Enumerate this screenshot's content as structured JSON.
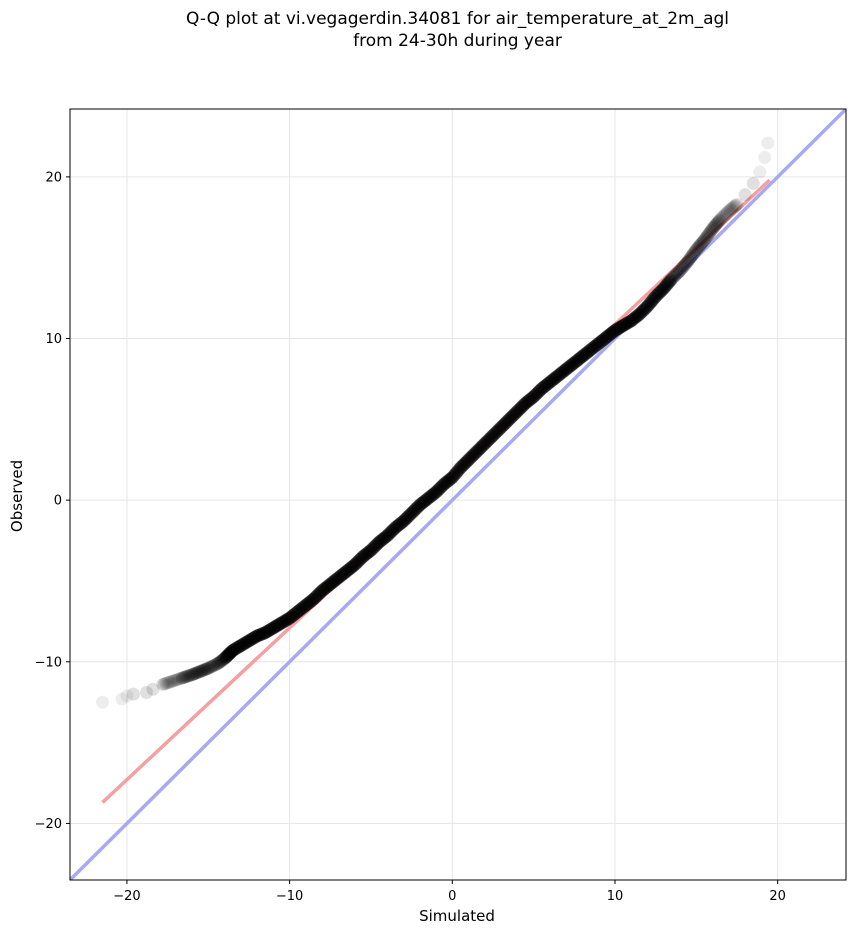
{
  "chart_data": {
    "type": "scatter",
    "title_line1": "Q-Q plot at vi.vegagerdin.34081 for air_temperature_at_2m_agl",
    "title_line2": "from 24-30h during year",
    "xlabel": "Simulated",
    "ylabel": "Observed",
    "xlim": [
      -23.5,
      24.2
    ],
    "ylim": [
      -23.5,
      24.2
    ],
    "xticks": [
      -20,
      -10,
      0,
      10,
      20
    ],
    "yticks": [
      -20,
      -10,
      0,
      10,
      20
    ],
    "xtick_labels": [
      "−20",
      "−10",
      "0",
      "10",
      "20"
    ],
    "ytick_labels": [
      "−20",
      "−10",
      "0",
      "10",
      "20"
    ],
    "grid": true,
    "colors": {
      "points": "#000000",
      "fit_line": "#f4a0a0",
      "identity_line": "#a8a8f4"
    },
    "identity_line": {
      "x": [
        -23.5,
        24.2
      ],
      "y": [
        -23.5,
        24.2
      ]
    },
    "fit_line": {
      "x": [
        -21.5,
        19.5
      ],
      "y": [
        -18.7,
        19.8
      ]
    },
    "quantiles": {
      "x": [
        -21.5,
        -20.3,
        -20.0,
        -19.6,
        -18.8,
        -18.4,
        -17.8,
        -17.2,
        -16.6,
        -16.0,
        -15.5,
        -15.0,
        -14.4,
        -14.0,
        -13.8,
        -13.5,
        -13.0,
        -12.5,
        -12.0,
        -11.5,
        -11.0,
        -10.5,
        -10.0,
        -9.5,
        -9.0,
        -8.5,
        -8.0,
        -7.5,
        -7.0,
        -6.5,
        -6.0,
        -5.5,
        -5.0,
        -4.5,
        -4.0,
        -3.5,
        -3.0,
        -2.5,
        -2.0,
        -1.5,
        -1.0,
        -0.5,
        0.0,
        0.5,
        1.0,
        1.5,
        2.0,
        2.5,
        3.0,
        3.5,
        4.0,
        4.5,
        5.0,
        5.5,
        6.0,
        6.5,
        7.0,
        7.5,
        8.0,
        8.5,
        9.0,
        9.5,
        10.0,
        10.5,
        11.0,
        11.5,
        12.0,
        12.5,
        13.0,
        13.5,
        14.0,
        14.5,
        15.0,
        15.5,
        16.0,
        16.5,
        17.0,
        17.5,
        18.0,
        18.5,
        18.9,
        19.2,
        19.4
      ],
      "y": [
        -12.5,
        -12.3,
        -12.1,
        -12.0,
        -11.9,
        -11.7,
        -11.4,
        -11.2,
        -11.0,
        -10.8,
        -10.6,
        -10.4,
        -10.1,
        -9.8,
        -9.6,
        -9.3,
        -9.0,
        -8.7,
        -8.4,
        -8.2,
        -7.9,
        -7.6,
        -7.3,
        -6.9,
        -6.5,
        -6.1,
        -5.6,
        -5.2,
        -4.8,
        -4.4,
        -4.0,
        -3.5,
        -3.1,
        -2.6,
        -2.2,
        -1.7,
        -1.3,
        -0.8,
        -0.3,
        0.1,
        0.5,
        1.0,
        1.4,
        2.0,
        2.5,
        3.0,
        3.5,
        4.0,
        4.5,
        5.0,
        5.5,
        6.0,
        6.4,
        6.9,
        7.3,
        7.7,
        8.1,
        8.5,
        8.9,
        9.3,
        9.7,
        10.1,
        10.5,
        10.8,
        11.1,
        11.5,
        12.0,
        12.6,
        13.1,
        13.7,
        14.2,
        14.8,
        15.5,
        16.1,
        16.8,
        17.4,
        17.9,
        18.3,
        18.9,
        19.6,
        20.3,
        21.2,
        22.1
      ]
    }
  }
}
